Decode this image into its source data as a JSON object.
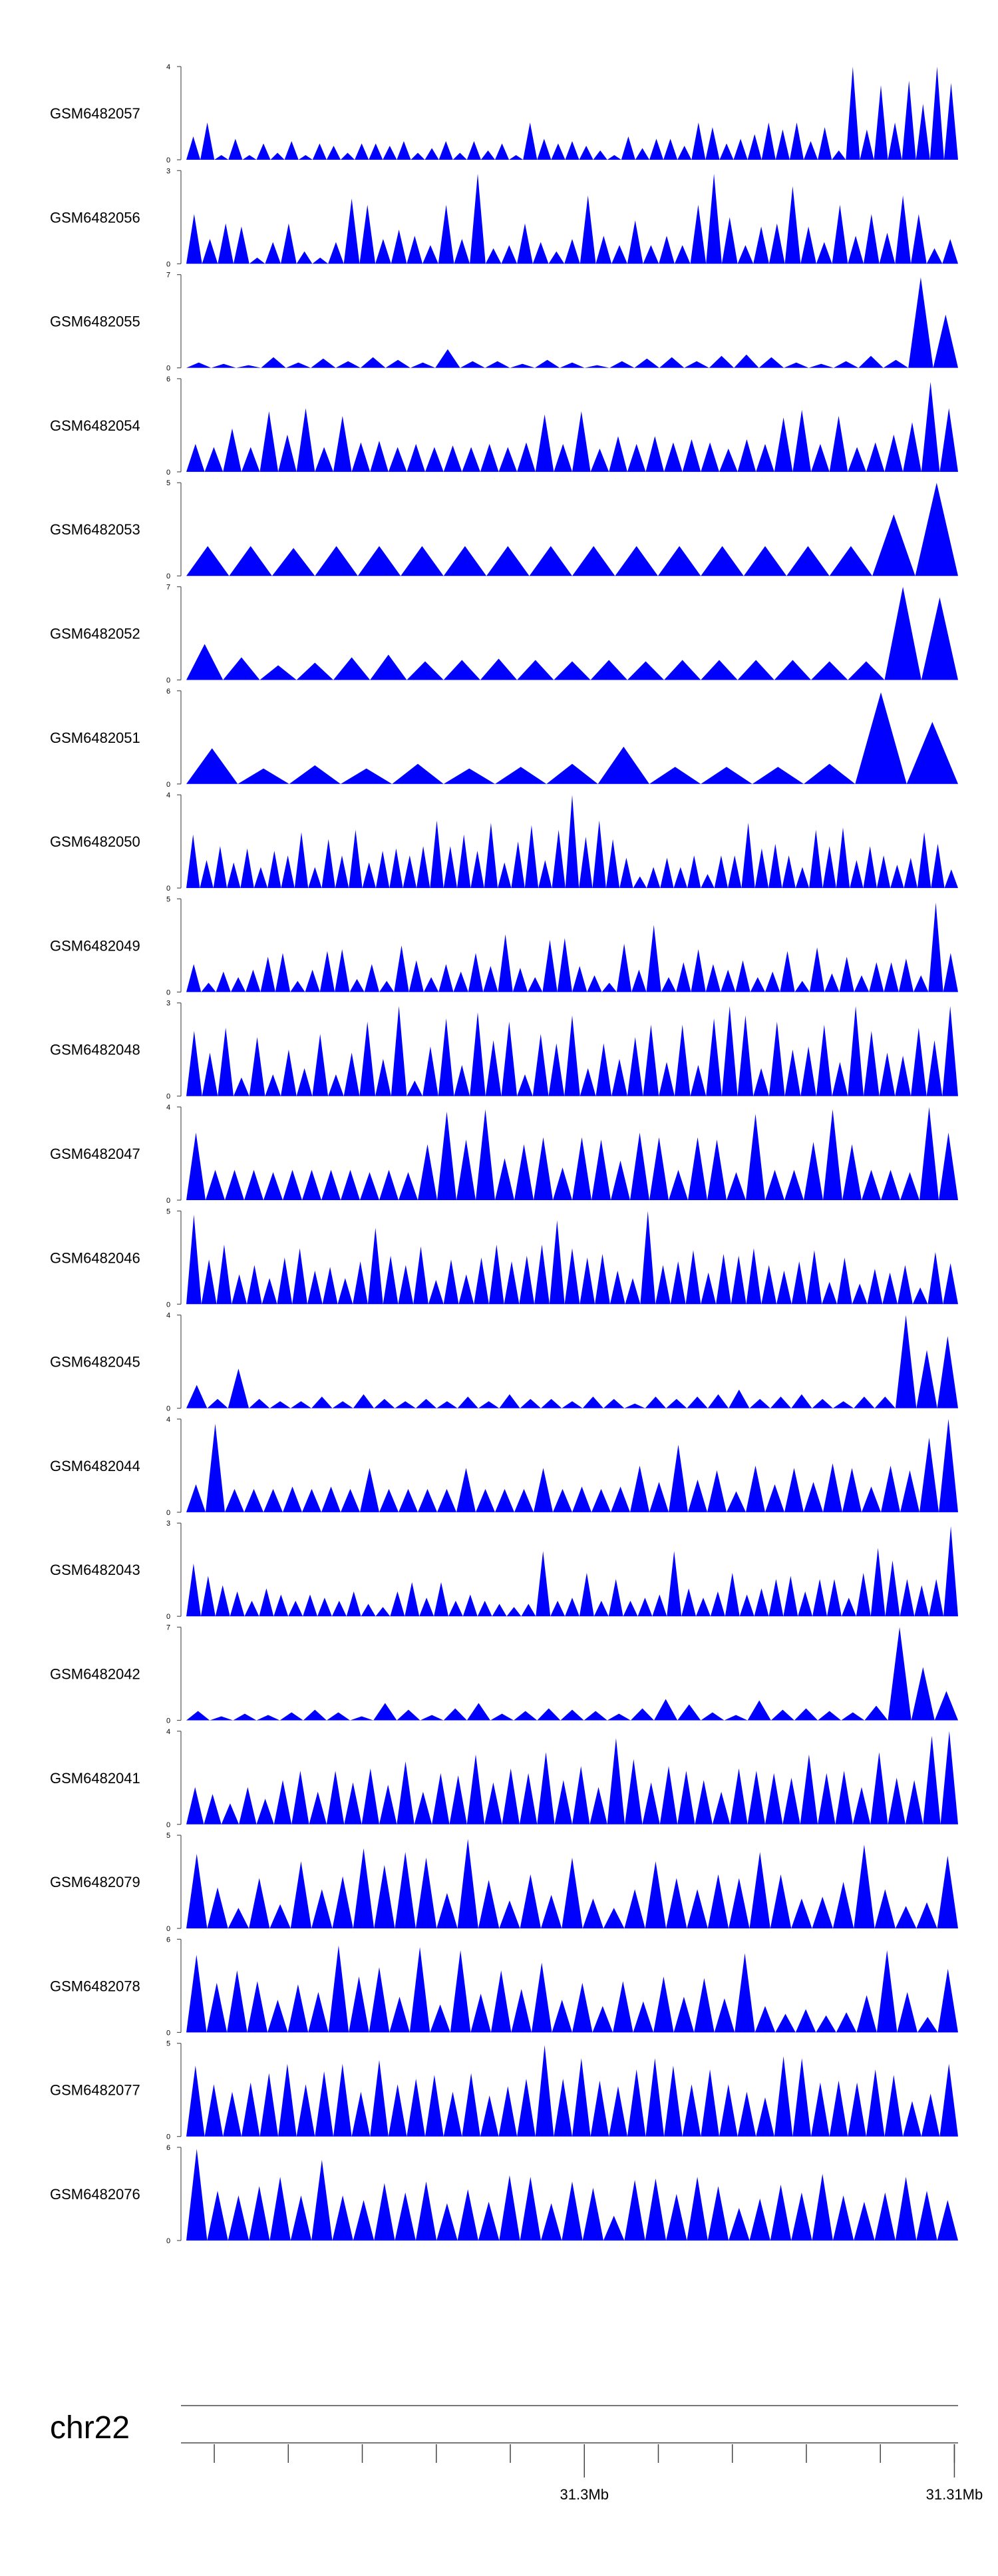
{
  "chart_data": {
    "type": "area",
    "chromosome": "chr22",
    "genome_axis": {
      "tick_labels": [
        "31.3Mb",
        "31.31Mb"
      ],
      "labeled_positions_mb": [
        31.3,
        31.31
      ],
      "minor_tick_step_mb": 0.002,
      "range_mb": [
        31.2891,
        31.3101
      ]
    },
    "fill_color": "#0000ff",
    "tracks": [
      {
        "name": "GSM6482057",
        "ymax": 4,
        "ymin": 0,
        "values": [
          1,
          1.6,
          0.2,
          0.9,
          0.2,
          0.7,
          0.3,
          0.8,
          0.2,
          0.7,
          0.6,
          0.3,
          0.7,
          0.7,
          0.6,
          0.8,
          0.3,
          0.5,
          0.8,
          0.3,
          0.8,
          0.4,
          0.7,
          0.2,
          1.6,
          0.9,
          0.7,
          0.8,
          0.6,
          0.4,
          0.2,
          1,
          0.5,
          0.9,
          0.9,
          0.6,
          1.6,
          1.4,
          0.7,
          0.9,
          1.1,
          1.6,
          1.3,
          1.6,
          0.8,
          1.4,
          0.4,
          4,
          1.3,
          3.2,
          1.6,
          3.4,
          2.4,
          4,
          3.3
        ]
      },
      {
        "name": "GSM6482056",
        "ymax": 3,
        "ymin": 0,
        "values": [
          1.6,
          0.8,
          1.3,
          1.2,
          0.2,
          0.7,
          1.3,
          0.4,
          0.2,
          0.7,
          2.1,
          1.9,
          0.8,
          1.1,
          0.9,
          0.6,
          1.9,
          0.8,
          2.9,
          0.5,
          0.6,
          1.3,
          0.7,
          0.4,
          0.8,
          2.2,
          0.9,
          0.6,
          1.4,
          0.6,
          0.9,
          0.6,
          1.9,
          2.9,
          1.5,
          0.6,
          1.2,
          1.3,
          2.5,
          1.2,
          0.7,
          1.9,
          0.9,
          1.6,
          1,
          2.2,
          1.6,
          0.5,
          0.8
        ]
      },
      {
        "name": "GSM6482055",
        "ymax": 7,
        "ymin": 0,
        "values": [
          0.4,
          0.3,
          0.2,
          0.8,
          0.4,
          0.7,
          0.5,
          0.8,
          0.6,
          0.4,
          1.4,
          0.5,
          0.5,
          0.3,
          0.6,
          0.4,
          0.2,
          0.5,
          0.7,
          0.8,
          0.5,
          0.9,
          1,
          0.8,
          0.4,
          0.3,
          0.5,
          0.9,
          0.6,
          6.8,
          4
        ]
      },
      {
        "name": "GSM6482054",
        "ymax": 6,
        "ymin": 0,
        "values": [
          1.8,
          1.6,
          2.8,
          1.6,
          3.9,
          2.4,
          4.1,
          1.6,
          3.6,
          1.9,
          2,
          1.6,
          1.8,
          1.6,
          1.7,
          1.6,
          1.8,
          1.6,
          1.9,
          3.7,
          1.8,
          3.9,
          1.5,
          2.3,
          1.8,
          2.3,
          1.9,
          2.1,
          1.9,
          1.5,
          2.1,
          1.8,
          3.5,
          4,
          1.8,
          3.6,
          1.6,
          1.9,
          2.4,
          3.2,
          5.8,
          4.1
        ]
      },
      {
        "name": "GSM6482053",
        "ymax": 5,
        "ymin": 0,
        "values": [
          1.6,
          1.6,
          1.5,
          1.6,
          1.6,
          1.6,
          1.6,
          1.6,
          1.6,
          1.6,
          1.6,
          1.6,
          1.6,
          1.6,
          1.6,
          1.6,
          3.3,
          5
        ]
      },
      {
        "name": "GSM6482052",
        "ymax": 7,
        "ymin": 0,
        "values": [
          2.7,
          1.7,
          1.1,
          1.3,
          1.7,
          1.9,
          1.4,
          1.5,
          1.6,
          1.5,
          1.4,
          1.5,
          1.4,
          1.5,
          1.5,
          1.5,
          1.5,
          1.4,
          1.4,
          7,
          6.2
        ]
      },
      {
        "name": "GSM6482051",
        "ymax": 6,
        "ymin": 0,
        "values": [
          2.3,
          1,
          1.2,
          1,
          1.3,
          1,
          1.1,
          1.3,
          2.4,
          1.1,
          1.1,
          1.1,
          1.3,
          5.9,
          4
        ]
      },
      {
        "name": "GSM6482050",
        "ymax": 4,
        "ymin": 0,
        "values": [
          2.3,
          1.2,
          1.8,
          1.1,
          1.7,
          0.9,
          1.6,
          1.4,
          2.4,
          0.9,
          2.1,
          1.4,
          2.5,
          1.1,
          1.6,
          1.7,
          1.4,
          1.8,
          2.9,
          1.8,
          2.3,
          1.6,
          2.8,
          1.1,
          2,
          2.7,
          1.2,
          2.5,
          4,
          2.2,
          2.9,
          2.1,
          1.3,
          0.5,
          0.9,
          1.3,
          0.9,
          1.4,
          0.6,
          1.4,
          1.4,
          2.8,
          1.7,
          1.9,
          1.4,
          0.9,
          2.5,
          1.8,
          2.6,
          1.2,
          1.8,
          1.4,
          1,
          1.3,
          2.4,
          1.9,
          0.8
        ]
      },
      {
        "name": "GSM6482049",
        "ymax": 5,
        "ymin": 0,
        "values": [
          1.5,
          0.5,
          1.1,
          0.8,
          1.2,
          1.9,
          2.1,
          0.6,
          1.2,
          2.2,
          2.3,
          0.7,
          1.5,
          0.6,
          2.5,
          1.7,
          0.8,
          1.5,
          1.1,
          2.1,
          1.4,
          3.1,
          1.3,
          0.8,
          2.8,
          2.9,
          1.4,
          0.9,
          0.5,
          2.6,
          1.2,
          3.6,
          0.8,
          1.6,
          2.3,
          1.5,
          1.2,
          1.7,
          0.8,
          1.1,
          2.2,
          0.6,
          2.4,
          1,
          1.9,
          0.9,
          1.6,
          1.6,
          1.8,
          0.9,
          4.8,
          2.1
        ]
      },
      {
        "name": "GSM6482048",
        "ymax": 3,
        "ymin": 0,
        "values": [
          2.1,
          1.4,
          2.2,
          0.6,
          1.9,
          0.7,
          1.5,
          0.9,
          2,
          0.7,
          1.4,
          2.4,
          1.2,
          2.9,
          0.5,
          1.6,
          2.5,
          1,
          2.7,
          1.8,
          2.4,
          0.7,
          2,
          1.7,
          2.6,
          0.9,
          1.7,
          1.2,
          1.9,
          2.3,
          1.1,
          2.3,
          1,
          2.5,
          2.9,
          2.6,
          0.9,
          2.4,
          1.5,
          1.6,
          2.3,
          1.1,
          2.9,
          2.1,
          1.4,
          1.3,
          2.2,
          1.8,
          2.9
        ]
      },
      {
        "name": "GSM6482047",
        "ymax": 4,
        "ymin": 0,
        "values": [
          2.9,
          1.3,
          1.3,
          1.3,
          1.2,
          1.3,
          1.3,
          1.3,
          1.3,
          1.2,
          1.3,
          1.2,
          2.4,
          3.8,
          2.6,
          3.9,
          1.8,
          2.4,
          2.7,
          1.4,
          2.7,
          2.6,
          1.7,
          2.9,
          2.7,
          1.3,
          2.7,
          2.6,
          1.2,
          3.7,
          1.3,
          1.3,
          2.5,
          3.9,
          2.4,
          1.3,
          1.3,
          1.2,
          4,
          2.9
        ]
      },
      {
        "name": "GSM6482046",
        "ymax": 5,
        "ymin": 0,
        "values": [
          4.8,
          2.4,
          3.2,
          1.6,
          2.1,
          1.4,
          2.5,
          3,
          1.8,
          2,
          1.4,
          2.3,
          4.1,
          2.6,
          2.1,
          3.1,
          1.3,
          2.4,
          1.6,
          2.5,
          3.2,
          2.3,
          2.6,
          3.2,
          4.5,
          3,
          2.5,
          2.7,
          1.8,
          1.4,
          5,
          2.1,
          2.3,
          2.9,
          1.7,
          2.7,
          2.6,
          3,
          2.1,
          1.8,
          2.3,
          2.9,
          1.2,
          2.5,
          1.1,
          1.9,
          1.7,
          2.1,
          0.9,
          2.8,
          2.2
        ]
      },
      {
        "name": "GSM6482045",
        "ymax": 4,
        "ymin": 0,
        "values": [
          1,
          0.4,
          1.7,
          0.4,
          0.3,
          0.3,
          0.5,
          0.3,
          0.6,
          0.4,
          0.3,
          0.4,
          0.3,
          0.5,
          0.3,
          0.6,
          0.4,
          0.4,
          0.3,
          0.5,
          0.4,
          0.2,
          0.5,
          0.4,
          0.5,
          0.6,
          0.8,
          0.4,
          0.5,
          0.6,
          0.4,
          0.3,
          0.5,
          0.5,
          4,
          2.5,
          3.1
        ]
      },
      {
        "name": "GSM6482044",
        "ymax": 4,
        "ymin": 0,
        "values": [
          1.2,
          3.8,
          1,
          1,
          1,
          1.1,
          1,
          1.1,
          1,
          1.9,
          1,
          1,
          1,
          1,
          1.9,
          1,
          1,
          1,
          1.9,
          1,
          1.1,
          1,
          1.1,
          2,
          1.3,
          2.9,
          1.4,
          1.8,
          0.9,
          2,
          1.2,
          1.9,
          1.3,
          2.1,
          1.9,
          1.1,
          2,
          1.8,
          3.2,
          4
        ]
      },
      {
        "name": "GSM6482043",
        "ymax": 3,
        "ymin": 0,
        "values": [
          1.7,
          1.3,
          1,
          0.8,
          0.5,
          0.9,
          0.7,
          0.5,
          0.7,
          0.6,
          0.5,
          0.8,
          0.4,
          0.3,
          0.8,
          1.1,
          0.6,
          1.1,
          0.5,
          0.7,
          0.5,
          0.4,
          0.3,
          0.4,
          2.1,
          0.5,
          0.6,
          1.4,
          0.5,
          1.2,
          0.5,
          0.6,
          0.7,
          2.1,
          0.9,
          0.6,
          0.8,
          1.4,
          0.7,
          0.9,
          1.2,
          1.3,
          0.8,
          1.2,
          1.2,
          0.6,
          1.4,
          2.2,
          1.8,
          1.2,
          1,
          1.2,
          2.9
        ]
      },
      {
        "name": "GSM6482042",
        "ymax": 7,
        "ymin": 0,
        "values": [
          0.7,
          0.3,
          0.5,
          0.4,
          0.6,
          0.8,
          0.6,
          0.3,
          1.3,
          0.8,
          0.4,
          0.9,
          1.3,
          0.5,
          0.7,
          0.9,
          0.8,
          0.7,
          0.5,
          0.9,
          1.6,
          1.2,
          0.6,
          0.4,
          1.5,
          0.8,
          0.9,
          0.7,
          0.6,
          1.1,
          7,
          4,
          2.2
        ]
      },
      {
        "name": "GSM6482041",
        "ymax": 4,
        "ymin": 0,
        "values": [
          1.6,
          1.3,
          0.9,
          1.6,
          1.1,
          1.9,
          2.3,
          1.4,
          2.3,
          1.8,
          2.4,
          1.7,
          2.7,
          1.4,
          2.2,
          2.1,
          3,
          1.8,
          2.4,
          2.2,
          3.1,
          1.9,
          2.5,
          1.6,
          3.7,
          2.8,
          1.8,
          2.5,
          2.3,
          1.9,
          1.4,
          2.4,
          2.3,
          2.2,
          2,
          3,
          2.2,
          2.3,
          1.6,
          3.1,
          2,
          1.9,
          3.8,
          4
        ]
      },
      {
        "name": "GSM6482079",
        "ymax": 5,
        "ymin": 0,
        "values": [
          4,
          2.2,
          1.1,
          2.7,
          1.3,
          3.6,
          2.1,
          2.8,
          4.3,
          3.4,
          4.1,
          3.8,
          1.9,
          4.8,
          2.6,
          1.5,
          2.9,
          1.8,
          3.8,
          1.6,
          1.1,
          2.1,
          3.6,
          2.7,
          2.1,
          2.9,
          2.7,
          4.1,
          2.9,
          1.6,
          1.7,
          2.5,
          4.5,
          2.1,
          1.2,
          1.4,
          3.9
        ]
      },
      {
        "name": "GSM6482078",
        "ymax": 6,
        "ymin": 0,
        "values": [
          5,
          3.2,
          4,
          3.3,
          2.1,
          3.1,
          2.6,
          5.6,
          3.6,
          4.2,
          2.3,
          5.5,
          1.8,
          5.3,
          2.5,
          4,
          2.8,
          4.5,
          2.1,
          3.2,
          1.7,
          3.3,
          2,
          3.6,
          2.3,
          3.5,
          2.2,
          5.1,
          1.7,
          1.2,
          1.5,
          1.1,
          1.3,
          2.4,
          5.3,
          2.6,
          1,
          4.1
        ]
      },
      {
        "name": "GSM6482077",
        "ymax": 5,
        "ymin": 0,
        "values": [
          3.8,
          2.8,
          2.4,
          2.9,
          3.4,
          3.9,
          2.8,
          3.5,
          3.9,
          2.4,
          4.1,
          2.8,
          3.1,
          3.3,
          2.4,
          3.4,
          2.2,
          2.7,
          3.1,
          4.9,
          3.1,
          4.2,
          3,
          2.7,
          3.6,
          4.2,
          3.8,
          2.8,
          3.6,
          2.8,
          2.4,
          2.1,
          4.3,
          4.2,
          2.9,
          3,
          2.9,
          3.6,
          3.3,
          1.9,
          2.3,
          3.9
        ]
      },
      {
        "name": "GSM6482076",
        "ymax": 6,
        "ymin": 0,
        "values": [
          5.9,
          3.2,
          2.9,
          3.5,
          4.1,
          2.9,
          5.2,
          2.9,
          2.6,
          3.7,
          3.1,
          3.8,
          2.4,
          3.3,
          2.5,
          4.2,
          4.1,
          2.4,
          3.8,
          3.4,
          1.6,
          3.9,
          4,
          3,
          4.1,
          3.5,
          2.1,
          2.7,
          3.6,
          3.1,
          4.3,
          2.9,
          2.5,
          3.1,
          4.1,
          3.2,
          2.6
        ]
      }
    ]
  }
}
